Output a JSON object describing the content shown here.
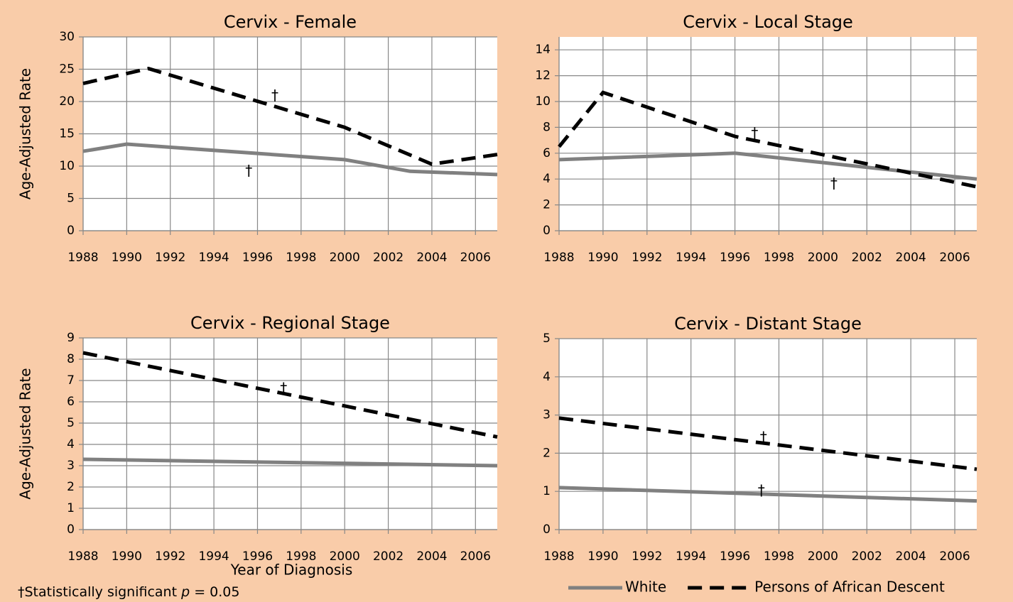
{
  "chart_data": [
    {
      "type": "line",
      "title": "Cervix - Female",
      "ylabel": "Age-Adjusted Rate",
      "xlim": [
        1988,
        2007
      ],
      "xticks": [
        1988,
        1990,
        1992,
        1994,
        1996,
        1998,
        2000,
        2002,
        2004,
        2006
      ],
      "ylim": [
        0,
        30
      ],
      "yticks": [
        0,
        5,
        10,
        15,
        20,
        25,
        30
      ],
      "grid": true,
      "series": [
        {
          "x": [
            1988,
            1990,
            2000,
            2003,
            2007
          ],
          "values": [
            12.3,
            13.4,
            11.0,
            9.2,
            8.7
          ],
          "color": "#808080",
          "dashed": false
        },
        {
          "x": [
            1988,
            1991,
            2000,
            2004,
            2007
          ],
          "values": [
            22.8,
            25.1,
            16.0,
            10.3,
            11.8
          ],
          "color": "#000000",
          "dashed": true
        }
      ],
      "annotations": [
        {
          "text": "†",
          "x": 1996.8,
          "y": 20.8
        },
        {
          "text": "†",
          "x": 1995.6,
          "y": 9.2
        }
      ]
    },
    {
      "type": "line",
      "title": "Cervix - Local Stage",
      "xlim": [
        1988,
        2007
      ],
      "xticks": [
        1988,
        1990,
        1992,
        1994,
        1996,
        1998,
        2000,
        2002,
        2004,
        2006
      ],
      "ylim": [
        0,
        15
      ],
      "yticks": [
        0,
        2,
        4,
        6,
        8,
        10,
        12,
        14
      ],
      "grid": true,
      "series": [
        {
          "x": [
            1988,
            1996,
            2007
          ],
          "values": [
            5.5,
            6.0,
            4.0
          ],
          "color": "#808080",
          "dashed": false
        },
        {
          "x": [
            1988,
            1990,
            1996,
            2007
          ],
          "values": [
            6.5,
            10.7,
            7.3,
            3.4
          ],
          "color": "#000000",
          "dashed": true
        }
      ],
      "annotations": [
        {
          "text": "†",
          "x": 1996.9,
          "y": 7.5
        },
        {
          "text": "†",
          "x": 2000.5,
          "y": 3.6
        }
      ]
    },
    {
      "type": "line",
      "title": "Cervix - Regional Stage",
      "ylabel": "Age-Adjusted Rate",
      "xlabel": "Year of Diagnosis",
      "xlim": [
        1988,
        2007
      ],
      "xticks": [
        1988,
        1990,
        1992,
        1994,
        1996,
        1998,
        2000,
        2002,
        2004,
        2006
      ],
      "ylim": [
        0,
        9
      ],
      "yticks": [
        0,
        1,
        2,
        3,
        4,
        5,
        6,
        7,
        8,
        9
      ],
      "grid": true,
      "series": [
        {
          "x": [
            1988,
            2007
          ],
          "values": [
            3.3,
            3.0
          ],
          "color": "#808080",
          "dashed": false
        },
        {
          "x": [
            1988,
            2007
          ],
          "values": [
            8.3,
            4.35
          ],
          "color": "#000000",
          "dashed": true
        }
      ],
      "annotations": [
        {
          "text": "†",
          "x": 1997.2,
          "y": 6.6
        }
      ]
    },
    {
      "type": "line",
      "title": "Cervix - Distant Stage",
      "xlim": [
        1988,
        2007
      ],
      "xticks": [
        1988,
        1990,
        1992,
        1994,
        1996,
        1998,
        2000,
        2002,
        2004,
        2006
      ],
      "ylim": [
        0,
        5
      ],
      "yticks": [
        0,
        1,
        2,
        3,
        4,
        5
      ],
      "grid": true,
      "series": [
        {
          "x": [
            1988,
            2007
          ],
          "values": [
            1.1,
            0.75
          ],
          "color": "#808080",
          "dashed": false
        },
        {
          "x": [
            1988,
            2007
          ],
          "values": [
            2.92,
            1.58
          ],
          "color": "#000000",
          "dashed": true
        }
      ],
      "annotations": [
        {
          "text": "†",
          "x": 1997.3,
          "y": 2.4
        },
        {
          "text": "†",
          "x": 1997.2,
          "y": 1.0
        }
      ]
    }
  ],
  "legend": [
    {
      "name": "White",
      "color": "#808080",
      "dashed": false
    },
    {
      "name": "Persons of African Descent",
      "color": "#000000",
      "dashed": true
    }
  ],
  "footnote": {
    "text": "†Statistically significant ",
    "variable": "p",
    "rest": " = 0.05"
  }
}
